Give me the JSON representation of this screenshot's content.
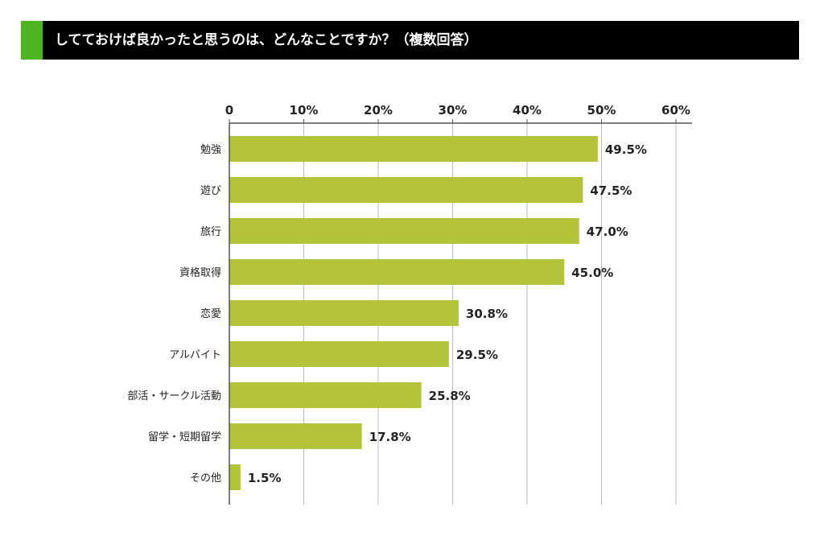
{
  "title": "してておけば良かったと思うのは、どんなことですか？（複数回答）",
  "colors": {
    "title_bg": "#000000",
    "accent": "#4cb51f",
    "bar": "#b3c43a",
    "grid": "#bbbbbb",
    "axis": "#555555"
  },
  "chart_data": {
    "type": "bar",
    "orientation": "horizontal",
    "categories": [
      "勉強",
      "遊び",
      "旅行",
      "資格取得",
      "恋愛",
      "アルバイト",
      "部活・サークル活動",
      "留学・短期留学",
      "その他"
    ],
    "values": [
      49.5,
      47.5,
      47.0,
      45.0,
      30.8,
      29.5,
      25.8,
      17.8,
      1.5
    ],
    "value_labels": [
      "49.5%",
      "47.5%",
      "47.0%",
      "45.0%",
      "30.8%",
      "29.5%",
      "25.8%",
      "17.8%",
      "1.5%"
    ],
    "xticks": [
      0,
      10,
      20,
      30,
      40,
      50,
      60
    ],
    "xtick_labels": [
      "0",
      "10%",
      "20%",
      "30%",
      "40%",
      "50%",
      "60%"
    ],
    "xlim": [
      0,
      60
    ],
    "grid": true,
    "xaxis_position": "top"
  }
}
